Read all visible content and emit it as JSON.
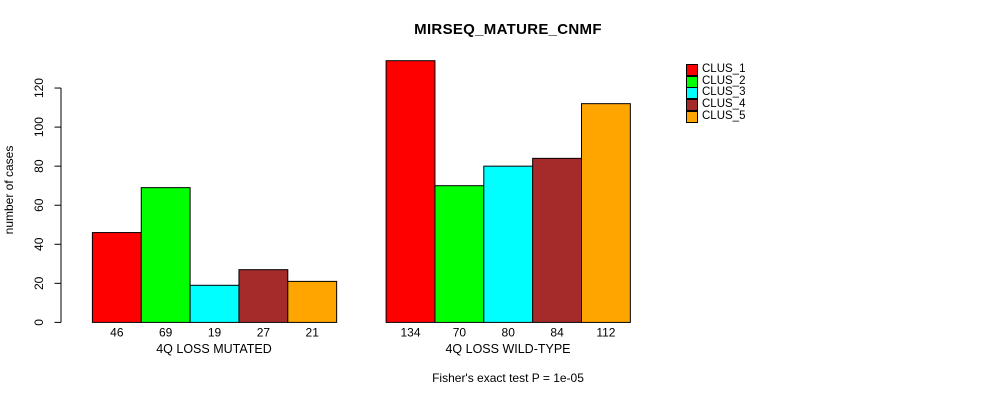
{
  "title": "MIRSEQ_MATURE_CNMF",
  "footer": "Fisher's exact test P = 1e-05",
  "y_axis": {
    "label": "number of cases"
  },
  "chart_data": {
    "type": "bar",
    "title": "MIRSEQ_MATURE_CNMF",
    "xlabel": "",
    "ylabel": "number of cases",
    "y_ticks": [
      0,
      20,
      40,
      60,
      80,
      100,
      120
    ],
    "ylim": [
      0,
      134
    ],
    "grid": false,
    "legend_position": "right",
    "groups": [
      {
        "label": "4Q LOSS MUTATED",
        "values": [
          46,
          69,
          19,
          27,
          21
        ]
      },
      {
        "label": "4Q LOSS WILD-TYPE",
        "values": [
          134,
          70,
          80,
          84,
          112
        ]
      }
    ],
    "series": [
      {
        "name": "CLUS_1",
        "color": "#FF0000",
        "values": [
          46,
          134
        ]
      },
      {
        "name": "CLUS_2",
        "color": "#00FF00",
        "values": [
          69,
          70
        ]
      },
      {
        "name": "CLUS_3",
        "color": "#00FFFF",
        "values": [
          19,
          80
        ]
      },
      {
        "name": "CLUS_4",
        "color": "#A52A2A",
        "values": [
          27,
          84
        ]
      },
      {
        "name": "CLUS_5",
        "color": "#FFA500",
        "values": [
          21,
          112
        ]
      }
    ],
    "legend": [
      {
        "label": "CLUS_1",
        "color": "#FF0000"
      },
      {
        "label": "CLUS_2",
        "color": "#00FF00"
      },
      {
        "label": "CLUS_3",
        "color": "#00FFFF"
      },
      {
        "label": "CLUS_4",
        "color": "#A52A2A"
      },
      {
        "label": "CLUS_5",
        "color": "#FFA500"
      }
    ],
    "annotation": "Fisher's exact test P = 1e-05",
    "axis_color": "#000000",
    "bar_border_color": "#000000"
  }
}
